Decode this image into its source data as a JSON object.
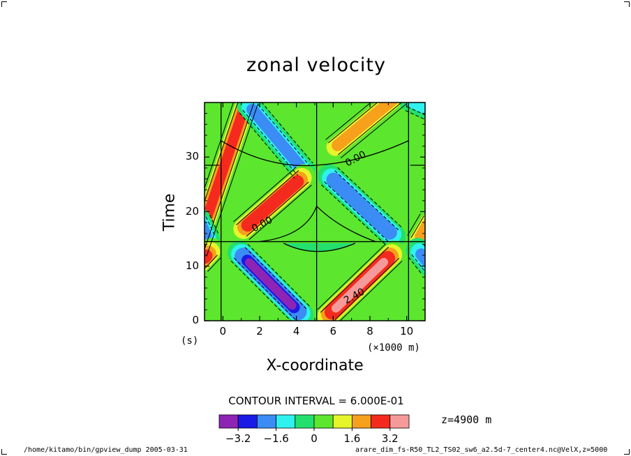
{
  "page": {
    "left_footer": "/home/kitamo/bin/gpview_dump  2005-03-31",
    "right_footer": "arare_dim_fs-R50_TL2_TS02_sw6_a2.5d-7_center4.nc@VelX,z=5000"
  },
  "chart_data": {
    "type": "heatmap",
    "title": "zonal velocity",
    "xlabel": "X-coordinate",
    "ylabel": "Time",
    "x_unit": "(×1000 m)",
    "y_unit": "(s)",
    "xlim": [
      -1,
      11
    ],
    "ylim": [
      0,
      40
    ],
    "x_ticks": [
      0,
      2,
      4,
      6,
      8,
      10
    ],
    "y_ticks": [
      0,
      10,
      20,
      30
    ],
    "contour_interval_text": "CONTOUR INTERVAL = 6.000E-01",
    "level_text": "z=4900 m",
    "contour_labels": [
      {
        "text": "0.00",
        "x": 7.4,
        "y": 29.5
      },
      {
        "text": "0.00",
        "x": 2.3,
        "y": 17.5
      },
      {
        "text": "2.40",
        "x": 7.3,
        "y": 4.3
      }
    ],
    "colorbar": {
      "colors": [
        "#8e24b4",
        "#1a1ae6",
        "#3b8cf5",
        "#2ff2ee",
        "#23e06e",
        "#5ce62e",
        "#e6f52a",
        "#f7a01c",
        "#f52a1e",
        "#f59a9a"
      ],
      "tick_labels": [
        "−3.2",
        "−1.6",
        "0",
        "1.6",
        "3.2"
      ],
      "tick_values": [
        -3.2,
        -1.6,
        0,
        1.6,
        3.2
      ],
      "range": [
        -4,
        4
      ]
    },
    "features": [
      {
        "sign": 1,
        "x1": -1.5,
        "y1": 12.5,
        "x2": 1.3,
        "y2": 40.5,
        "peak": 2.4
      },
      {
        "sign": -1,
        "x1": 1.4,
        "y1": 39.5,
        "x2": 4.4,
        "y2": 27.5,
        "peak": 2.0
      },
      {
        "sign": 1,
        "x1": 1.0,
        "y1": 16.5,
        "x2": 4.4,
        "y2": 26.5,
        "peak": 3.4
      },
      {
        "sign": -1,
        "x1": 0.9,
        "y1": 12.5,
        "x2": 4.3,
        "y2": 1.0,
        "peak": 3.6
      },
      {
        "sign": 1,
        "x1": 6.0,
        "y1": 31.5,
        "x2": 9.6,
        "y2": 41.5,
        "peak": 2.3
      },
      {
        "sign": -1,
        "x1": 5.8,
        "y1": 26.5,
        "x2": 9.3,
        "y2": 15.5,
        "peak": 2.8
      },
      {
        "sign": 1,
        "x1": 5.6,
        "y1": 0.5,
        "x2": 9.3,
        "y2": 12.5,
        "peak": 3.6
      },
      {
        "sign": -1,
        "x1": 10.2,
        "y1": 40.5,
        "x2": 11.5,
        "y2": 38.5,
        "peak": 1.4
      },
      {
        "sign": -1,
        "x1": -1.3,
        "y1": 18.5,
        "x2": -0.8,
        "y2": 14.8,
        "peak": 2.2
      },
      {
        "sign": 1,
        "x1": -1.3,
        "y1": 10.5,
        "x2": -0.6,
        "y2": 13.0,
        "peak": 3.0
      },
      {
        "sign": 1,
        "x1": 10.6,
        "y1": 14.5,
        "x2": 11.3,
        "y2": 18.5,
        "peak": 2.2
      },
      {
        "sign": -1,
        "x1": 10.6,
        "y1": 13.0,
        "x2": 11.3,
        "y2": 10.0,
        "peak": 2.0
      }
    ]
  }
}
